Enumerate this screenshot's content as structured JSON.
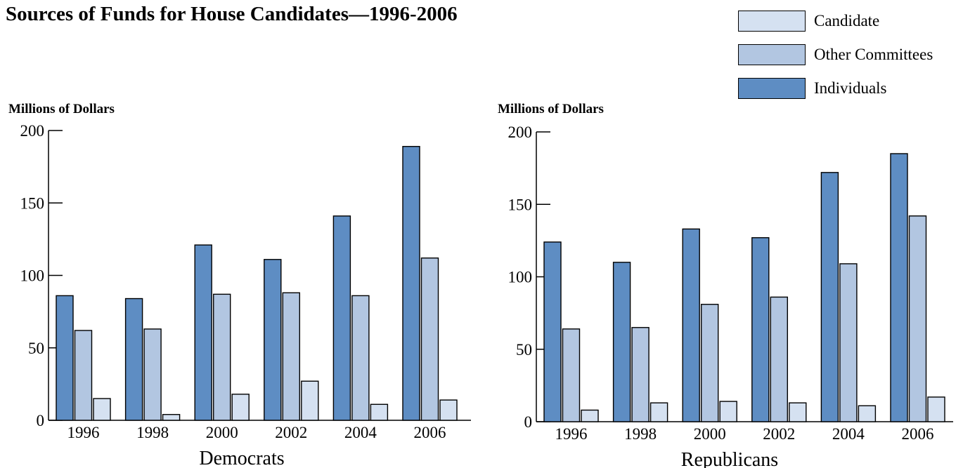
{
  "title": "Sources of Funds for House Candidates—1996-2006",
  "legend": [
    {
      "label": "Candidate",
      "color": "#d5e1f1"
    },
    {
      "label": "Other Committees",
      "color": "#b2c6e1"
    },
    {
      "label": "Individuals",
      "color": "#5e8dc3"
    }
  ],
  "chart_data": [
    {
      "type": "bar",
      "title": "Democrats",
      "ylabel": "Millions of Dollars",
      "ylim": [
        0,
        200
      ],
      "yticks": [
        0,
        50,
        100,
        150,
        200
      ],
      "categories": [
        "1996",
        "1998",
        "2000",
        "2002",
        "2004",
        "2006"
      ],
      "series": [
        {
          "name": "Individuals",
          "color": "#5e8dc3",
          "values": [
            86,
            84,
            121,
            111,
            141,
            189
          ]
        },
        {
          "name": "Other Committees",
          "color": "#b2c6e1",
          "values": [
            62,
            63,
            87,
            88,
            86,
            112
          ]
        },
        {
          "name": "Candidate",
          "color": "#d5e1f1",
          "values": [
            15,
            4,
            18,
            27,
            11,
            14
          ]
        }
      ],
      "grid": false
    },
    {
      "type": "bar",
      "title": "Republicans",
      "ylabel": "Millions of Dollars",
      "ylim": [
        0,
        200
      ],
      "yticks": [
        0,
        50,
        100,
        150,
        200
      ],
      "categories": [
        "1996",
        "1998",
        "2000",
        "2002",
        "2004",
        "2006"
      ],
      "series": [
        {
          "name": "Individuals",
          "color": "#5e8dc3",
          "values": [
            124,
            110,
            133,
            127,
            172,
            185
          ]
        },
        {
          "name": "Other Committees",
          "color": "#b2c6e1",
          "values": [
            64,
            65,
            81,
            86,
            109,
            142
          ]
        },
        {
          "name": "Candidate",
          "color": "#d5e1f1",
          "values": [
            8,
            13,
            14,
            13,
            11,
            17
          ]
        }
      ],
      "grid": false
    }
  ]
}
